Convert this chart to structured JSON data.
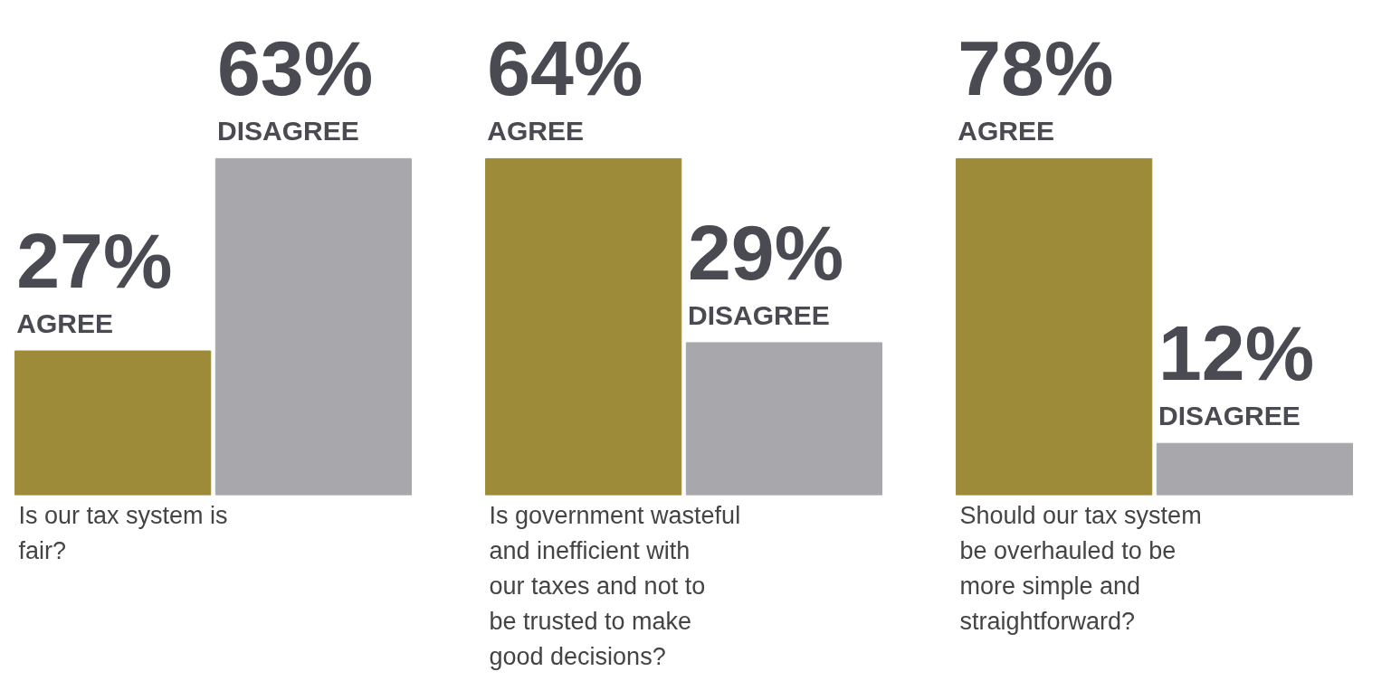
{
  "chart_data": [
    {
      "type": "bar",
      "title": "Is our tax system is fair?",
      "categories": [
        null
      ],
      "legend": false,
      "series": [
        {
          "name": "AGREE",
          "color": "#9d8b3a",
          "values": [
            27
          ],
          "value_labels": [
            "27%"
          ]
        },
        {
          "name": "DISAGREE",
          "color": "#a8a7ac",
          "values": [
            63
          ],
          "value_labels": [
            "63%"
          ]
        }
      ]
    },
    {
      "type": "bar",
      "title": "Is government wasteful and inefficient with our taxes and not to be trusted to make good decisions?",
      "categories": [
        null
      ],
      "legend": false,
      "series": [
        {
          "name": "AGREE",
          "color": "#9d8b3a",
          "values": [
            64
          ],
          "value_labels": [
            "64%"
          ]
        },
        {
          "name": "DISAGREE",
          "color": "#a8a7ac",
          "values": [
            29
          ],
          "value_labels": [
            "29%"
          ]
        }
      ]
    },
    {
      "type": "bar",
      "title": "Should our tax system be overhauled to be more simple and straightforward?",
      "categories": [
        null
      ],
      "legend": false,
      "series": [
        {
          "name": "AGREE",
          "color": "#9d8b3a",
          "values": [
            78
          ],
          "value_labels": [
            "78%"
          ]
        },
        {
          "name": "DISAGREE",
          "color": "#a8a7ac",
          "values": [
            12
          ],
          "value_labels": [
            "12%"
          ]
        }
      ]
    }
  ]
}
